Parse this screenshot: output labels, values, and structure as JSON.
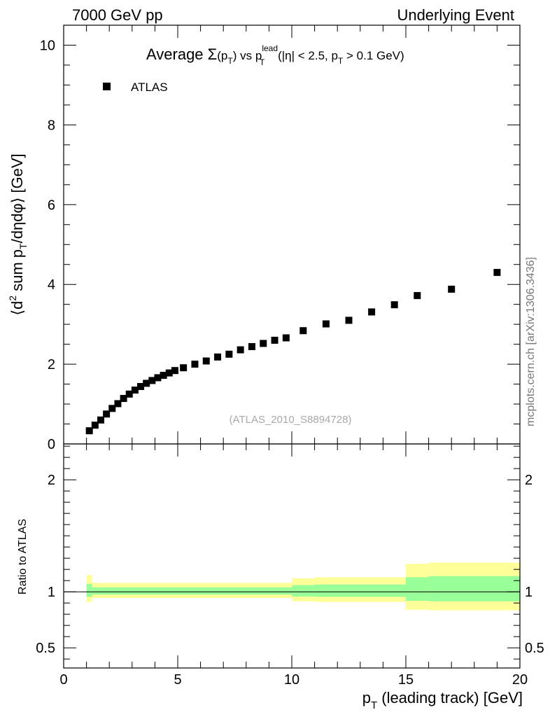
{
  "header": {
    "left": "7000 GeV pp",
    "right": "Underlying Event"
  },
  "side_label": "mcplots.cern.ch [arXiv:1306.3436]",
  "colors": {
    "marker": "#000000",
    "band_inner": "#99ff99",
    "band_outer": "#ffff99",
    "reference_line": "#000000"
  },
  "chart_data": [
    {
      "type": "scatter",
      "title_parts": {
        "prefix": "Average ",
        "sigma": "Σ",
        "paren_open": "(p",
        "paren_sub": "T",
        "paren_close": ")",
        "vs": " vs p",
        "sup": "lead",
        "sub": "T",
        "rest1": " (|η| < 2.5, p",
        "rest_sub": "T",
        "rest2": " > 0.1 GeV)"
      },
      "ylabel_parts": {
        "a": "⟨d",
        "sup2": "2",
        "b": " sum p",
        "subT": "T",
        "c": "/dηdφ⟩ [GeV]"
      },
      "watermark": "(ATLAS_2010_S8894728)",
      "legend": {
        "placement": "top-left",
        "entries": [
          "ATLAS"
        ]
      },
      "xlim": [
        0,
        20
      ],
      "ylim": [
        0,
        10.5
      ],
      "yticks": [
        2,
        4,
        6,
        8,
        10
      ],
      "series": [
        {
          "name": "ATLAS",
          "x": [
            1.125,
            1.375,
            1.625,
            1.875,
            2.125,
            2.375,
            2.625,
            2.875,
            3.125,
            3.375,
            3.625,
            3.875,
            4.125,
            4.375,
            4.625,
            4.875,
            5.25,
            5.75,
            6.25,
            6.75,
            7.25,
            7.75,
            8.25,
            8.75,
            9.25,
            9.75,
            10.5,
            11.5,
            12.5,
            13.5,
            14.5,
            15.5,
            17.0,
            19.0
          ],
          "y": [
            0.33,
            0.47,
            0.6,
            0.75,
            0.89,
            1.01,
            1.14,
            1.25,
            1.35,
            1.44,
            1.52,
            1.59,
            1.66,
            1.72,
            1.78,
            1.84,
            1.91,
            2.0,
            2.08,
            2.18,
            2.25,
            2.36,
            2.44,
            2.52,
            2.6,
            2.66,
            2.84,
            3.01,
            3.1,
            3.31,
            3.49,
            3.72,
            3.88,
            4.3
          ]
        }
      ]
    },
    {
      "type": "area",
      "ylabel": "Ratio to ATLAS",
      "xlabel_parts": {
        "p": "p",
        "sub": "T",
        "rest": " (leading track) [GeV]"
      },
      "xlim": [
        0,
        20
      ],
      "ylim": [
        0.32,
        2.32
      ],
      "xticks": [
        0,
        5,
        10,
        15,
        20
      ],
      "yticks": [
        0.5,
        1,
        2
      ],
      "ytick_labels": [
        "0.5",
        "1",
        "2"
      ],
      "reference": 1,
      "bands": [
        {
          "x0": 1.0,
          "x1": 1.25,
          "outer_lo": 0.91,
          "outer_hi": 1.15,
          "inner_lo": 0.955,
          "inner_hi": 1.07
        },
        {
          "x0": 1.25,
          "x1": 10.0,
          "outer_lo": 0.945,
          "outer_hi": 1.08,
          "inner_lo": 0.975,
          "inner_hi": 1.04
        },
        {
          "x0": 10.0,
          "x1": 11.0,
          "outer_lo": 0.915,
          "outer_hi": 1.12,
          "inner_lo": 0.958,
          "inner_hi": 1.06
        },
        {
          "x0": 11.0,
          "x1": 15.0,
          "outer_lo": 0.91,
          "outer_hi": 1.13,
          "inner_lo": 0.955,
          "inner_hi": 1.065
        },
        {
          "x0": 15.0,
          "x1": 16.0,
          "outer_lo": 0.84,
          "outer_hi": 1.25,
          "inner_lo": 0.92,
          "inner_hi": 1.13
        },
        {
          "x0": 16.0,
          "x1": 20.0,
          "outer_lo": 0.835,
          "outer_hi": 1.26,
          "inner_lo": 0.915,
          "inner_hi": 1.14
        }
      ]
    }
  ]
}
